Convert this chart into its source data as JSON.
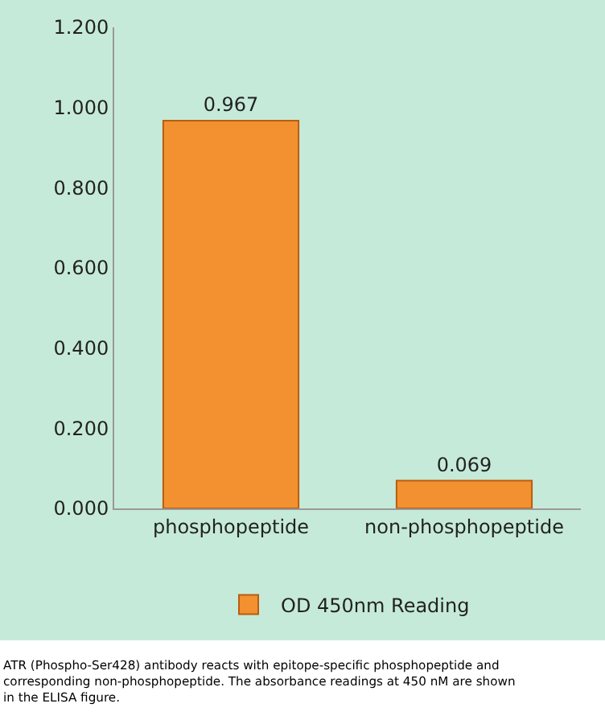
{
  "chart_data": {
    "type": "bar",
    "categories": [
      "phosphopeptide",
      "non-phosphopeptide"
    ],
    "series": [
      {
        "name": "OD 450nm Reading",
        "color": "#f39130",
        "values": [
          0.967,
          0.069
        ]
      }
    ],
    "ylim": [
      0,
      1.2
    ],
    "yticks": [
      {
        "value": 0,
        "label": "0.000"
      },
      {
        "value": 0.2,
        "label": "0.200"
      },
      {
        "value": 0.4,
        "label": "0.400"
      },
      {
        "value": 0.6,
        "label": "0.600"
      },
      {
        "value": 0.8,
        "label": "0.800"
      },
      {
        "value": 1.0,
        "label": "1.000"
      },
      {
        "value": 1.2,
        "label": "1.200"
      }
    ],
    "grid": false,
    "legend": "bottom",
    "data_labels": true,
    "annotations": [
      "ATR (Phospho-Ser428) antibody reacts with epitope-specific phosphopeptide and corresponding non-phosphopeptide. The absorbance readings at 450 nM are shown in the ELISA figure."
    ]
  }
}
